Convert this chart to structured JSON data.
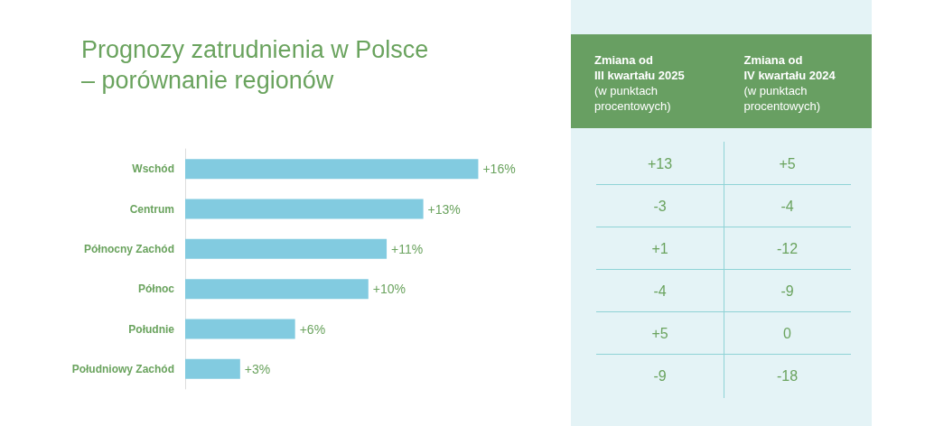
{
  "chart_data": [
    {
      "type": "bar",
      "title": "Prognozy zatrudnienia w Polsce\n– porównanie regionów",
      "orientation": "horizontal",
      "categories": [
        "Wschód",
        "Centrum",
        "Północny Zachód",
        "Północ",
        "Południe",
        "Południowy Zachód"
      ],
      "values": [
        16,
        13,
        11,
        10,
        6,
        3
      ],
      "color": "#82cbe0",
      "value_labels": [
        "+16%",
        "+13%",
        "+11%",
        "+10%",
        "+6%",
        "+3%"
      ]
    },
    {
      "type": "other",
      "categories": [
        "Zmiana od\nIII kwartału 2025\n(w punktach\nprocentowych)",
        "Zmiana od\nIV kwartału 2024\n(w punktach\nprocentowych)"
      ],
      "annotations": [
        "+13",
        "+5",
        "-3",
        "-4",
        "+1",
        "-12",
        "-4",
        "-9",
        "+5",
        "0",
        "-9",
        "-18"
      ]
    }
  ]
}
